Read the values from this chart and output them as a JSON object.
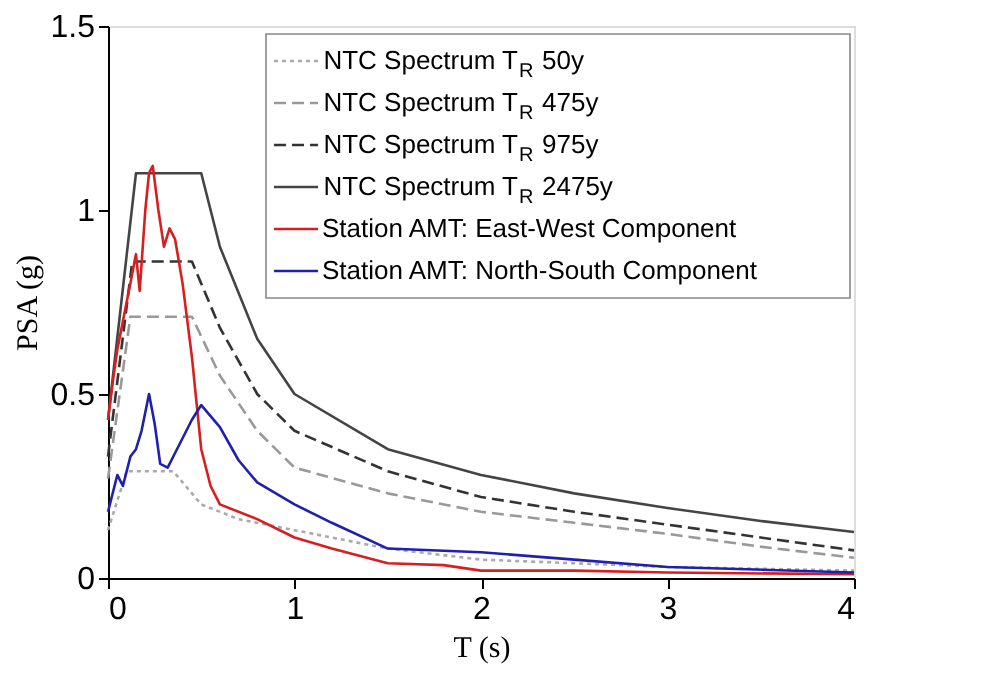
{
  "chart_data": {
    "type": "line",
    "xlabel": "T (s)",
    "ylabel": "PSA (g)",
    "xlim": [
      0,
      4
    ],
    "ylim": [
      0,
      1.5
    ],
    "xticks": [
      0,
      1,
      2,
      3,
      4
    ],
    "yticks": [
      0,
      0.5,
      1,
      1.5
    ],
    "grid": false,
    "legend": "top right",
    "marker": "none",
    "series": [
      {
        "name": "NTC Spectrum T$_{R}$ 50y",
        "color": "#aaaaaa",
        "line_style": "dotted",
        "x": [
          0,
          0.1,
          0.35,
          0.5,
          0.7,
          1,
          1.5,
          2,
          2.5,
          3,
          3.5,
          4
        ],
        "values": [
          0.13,
          0.29,
          0.29,
          0.2,
          0.16,
          0.13,
          0.08,
          0.05,
          0.04,
          0.03,
          0.025,
          0.02
        ]
      },
      {
        "name": "NTC Spectrum T$_{R}$ 475y",
        "color": "#999999",
        "line_style": "dashed",
        "x": [
          0,
          0.12,
          0.45,
          0.6,
          0.8,
          1,
          1.5,
          2,
          2.5,
          3,
          3.5,
          4
        ],
        "values": [
          0.27,
          0.71,
          0.71,
          0.55,
          0.4,
          0.3,
          0.23,
          0.18,
          0.15,
          0.12,
          0.085,
          0.055
        ]
      },
      {
        "name": "NTC Spectrum T$_{R}$ 975y",
        "color": "#333333",
        "line_style": "dashed",
        "x": [
          0,
          0.13,
          0.45,
          0.6,
          0.8,
          1,
          1.5,
          2,
          2.5,
          3,
          3.5,
          4
        ],
        "values": [
          0.33,
          0.86,
          0.86,
          0.68,
          0.5,
          0.4,
          0.29,
          0.22,
          0.18,
          0.145,
          0.11,
          0.075
        ]
      },
      {
        "name": "NTC Spectrum T$_{R}$ 2475y",
        "color": "#444444",
        "line_style": "solid",
        "x": [
          0,
          0.15,
          0.5,
          0.6,
          0.8,
          1,
          1.5,
          2,
          2.5,
          3,
          3.5,
          4
        ],
        "values": [
          0.43,
          1.1,
          1.1,
          0.9,
          0.65,
          0.5,
          0.35,
          0.28,
          0.23,
          0.19,
          0.155,
          0.125
        ]
      },
      {
        "name": "Station AMT: East-West Component",
        "color": "#d62020",
        "line_style": "solid",
        "x": [
          0,
          0.03,
          0.05,
          0.1,
          0.12,
          0.15,
          0.17,
          0.2,
          0.22,
          0.24,
          0.27,
          0.3,
          0.33,
          0.36,
          0.4,
          0.45,
          0.5,
          0.55,
          0.6,
          0.8,
          1,
          1.2,
          1.5,
          1.8,
          2,
          2.5,
          3,
          4
        ],
        "values": [
          0.43,
          0.55,
          0.62,
          0.75,
          0.8,
          0.88,
          0.78,
          1.0,
          1.1,
          1.12,
          1.0,
          0.9,
          0.95,
          0.92,
          0.8,
          0.6,
          0.35,
          0.25,
          0.2,
          0.16,
          0.11,
          0.08,
          0.04,
          0.035,
          0.02,
          0.02,
          0.015,
          0.01
        ]
      },
      {
        "name": "Station AMT: North-South Component",
        "color": "#2020b0",
        "line_style": "solid",
        "x": [
          0,
          0.05,
          0.08,
          0.12,
          0.15,
          0.18,
          0.22,
          0.25,
          0.28,
          0.32,
          0.38,
          0.45,
          0.5,
          0.6,
          0.7,
          0.8,
          1,
          1.2,
          1.5,
          2,
          2.5,
          3,
          4
        ],
        "values": [
          0.18,
          0.28,
          0.25,
          0.33,
          0.35,
          0.4,
          0.5,
          0.42,
          0.31,
          0.3,
          0.36,
          0.43,
          0.47,
          0.41,
          0.32,
          0.26,
          0.2,
          0.15,
          0.08,
          0.07,
          0.05,
          0.03,
          0.015
        ]
      }
    ]
  }
}
